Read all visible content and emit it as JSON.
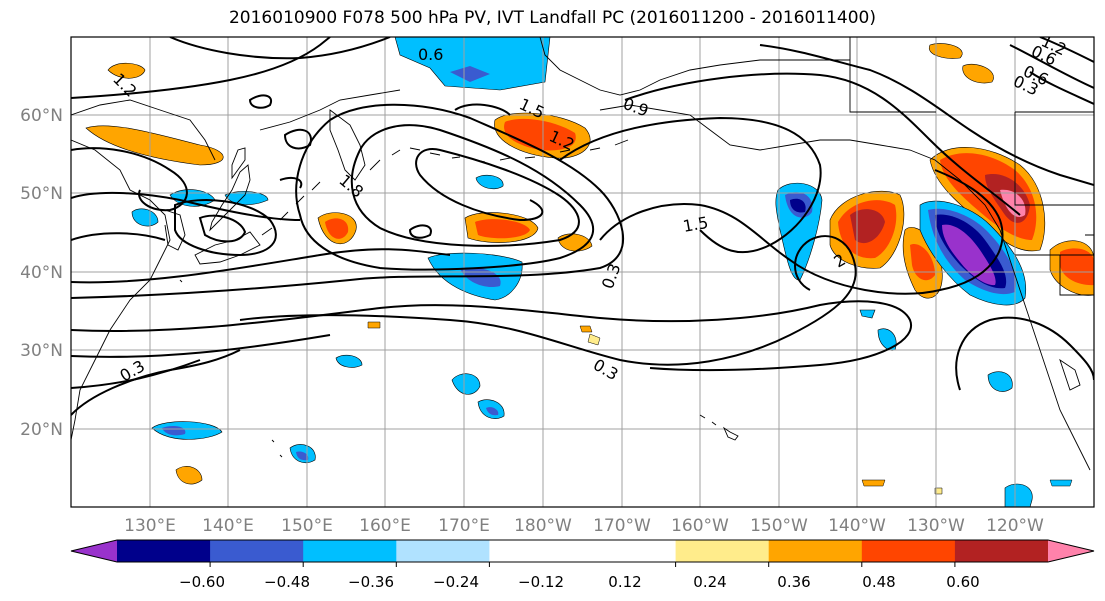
{
  "title": "2016010900 F078 500 hPa PV, IVT Landfall PC (2016011200 - 2016011400)",
  "lat_labels": [
    "60°N",
    "50°N",
    "40°N",
    "30°N",
    "20°N"
  ],
  "lon_labels": [
    "130°E",
    "140°E",
    "150°E",
    "160°E",
    "170°E",
    "180°W",
    "170°W",
    "160°W",
    "150°W",
    "140°W",
    "130°W",
    "120°W"
  ],
  "colorbar": {
    "colors": [
      "#9932cc",
      "#00008b",
      "#3a5bd0",
      "#00bfff",
      "#b0e2ff",
      "#ffffff",
      "#ffffff",
      "#ffec8b",
      "#ffa500",
      "#ff4500",
      "#b22222",
      "#ff82ab"
    ],
    "tick_labels": [
      "−0.60",
      "−0.48",
      "−0.36",
      "−0.24",
      "−0.12",
      "0.12",
      "0.24",
      "0.36",
      "0.48",
      "0.60"
    ]
  },
  "contour_labels": [
    "0.6",
    "1.2",
    "1.5",
    "1.2",
    "0.9",
    "1.8",
    "1.5",
    "2",
    "0.3",
    "0.3",
    "0.3",
    "0.6",
    "0.3",
    "1.2",
    "0.6"
  ]
}
